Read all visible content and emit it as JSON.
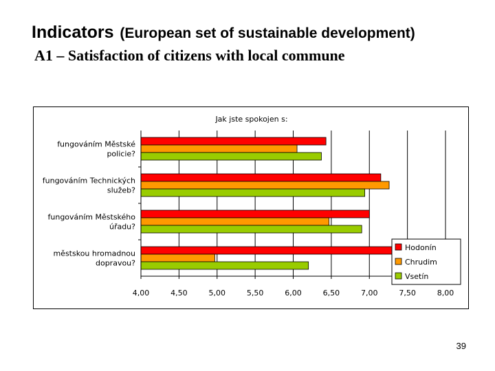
{
  "slide": {
    "title_main": "Indicators",
    "title_sub": "(European set of sustainable development)",
    "subtitle": "A1 – Satisfaction of citizens with local commune",
    "page_number": "39"
  },
  "chart_data": {
    "type": "bar",
    "orientation": "horizontal",
    "title": "Jak jste spokojen s:",
    "categories": [
      [
        "fungováním Městské",
        "policie?"
      ],
      [
        "fungováním Technických",
        "služeb?"
      ],
      [
        "fungováním Městského",
        "úřadu?"
      ],
      [
        "městskou hromadnou",
        "dopravou?"
      ]
    ],
    "series": [
      {
        "name": "Hodonín",
        "color": "#ff0000",
        "values": [
          6.43,
          7.15,
          7.0,
          7.3
        ]
      },
      {
        "name": "Chrudim",
        "color": "#ff9900",
        "values": [
          6.05,
          7.26,
          6.47,
          4.97
        ]
      },
      {
        "name": "Vsetín",
        "color": "#99cc00",
        "values": [
          6.37,
          6.94,
          6.9,
          6.2
        ]
      }
    ],
    "xlim": [
      4.0,
      8.0
    ],
    "xticks": [
      4.0,
      4.5,
      5.0,
      5.5,
      6.0,
      6.5,
      7.0,
      7.5,
      8.0
    ],
    "xtick_labels": [
      "4,00",
      "4,50",
      "5,00",
      "5,50",
      "6,00",
      "6,50",
      "7,00",
      "7,50",
      "8,00"
    ],
    "grid": "vertical",
    "legend_position": "bottom-right"
  }
}
